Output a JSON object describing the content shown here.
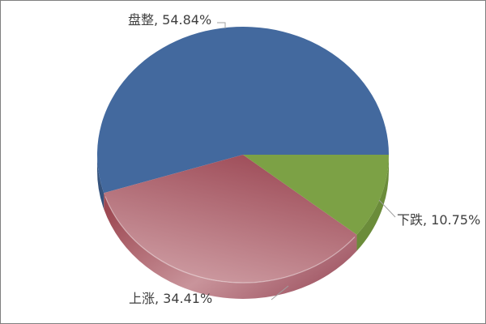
{
  "chart_data": {
    "type": "pie",
    "style": "pie-3d",
    "title": "",
    "legend_position": "none",
    "start_angle_deg": 0,
    "direction": "counterclockwise",
    "label_format": "category, percent",
    "background_color": "#FFFFFF",
    "frame_border_color": "#7F7F7F",
    "text_color": "#3F3F3F",
    "leader_line_color": "#A0A0A0",
    "categories": [
      "盘整",
      "上涨",
      "下跌"
    ],
    "values": [
      54.84,
      34.41,
      10.75
    ],
    "unit": "%",
    "slices": [
      {
        "label": "盘整",
        "value": 54.84,
        "display_label": "盘整, 54.84%",
        "top_color": "#43699E",
        "side_color": "#35537D"
      },
      {
        "label": "上涨",
        "value": 34.41,
        "display_label": "上涨, 34.41%",
        "top_gradient": [
          "#9E4C58",
          "#D0A0A6"
        ],
        "side_gradient": [
          "#9D4953",
          "#C9949B",
          "#9D5260"
        ]
      },
      {
        "label": "下跌",
        "value": 10.75,
        "display_label": "下跌, 10.75%",
        "top_color": "#7CA145",
        "side_color": "#6B8C3A"
      }
    ]
  }
}
